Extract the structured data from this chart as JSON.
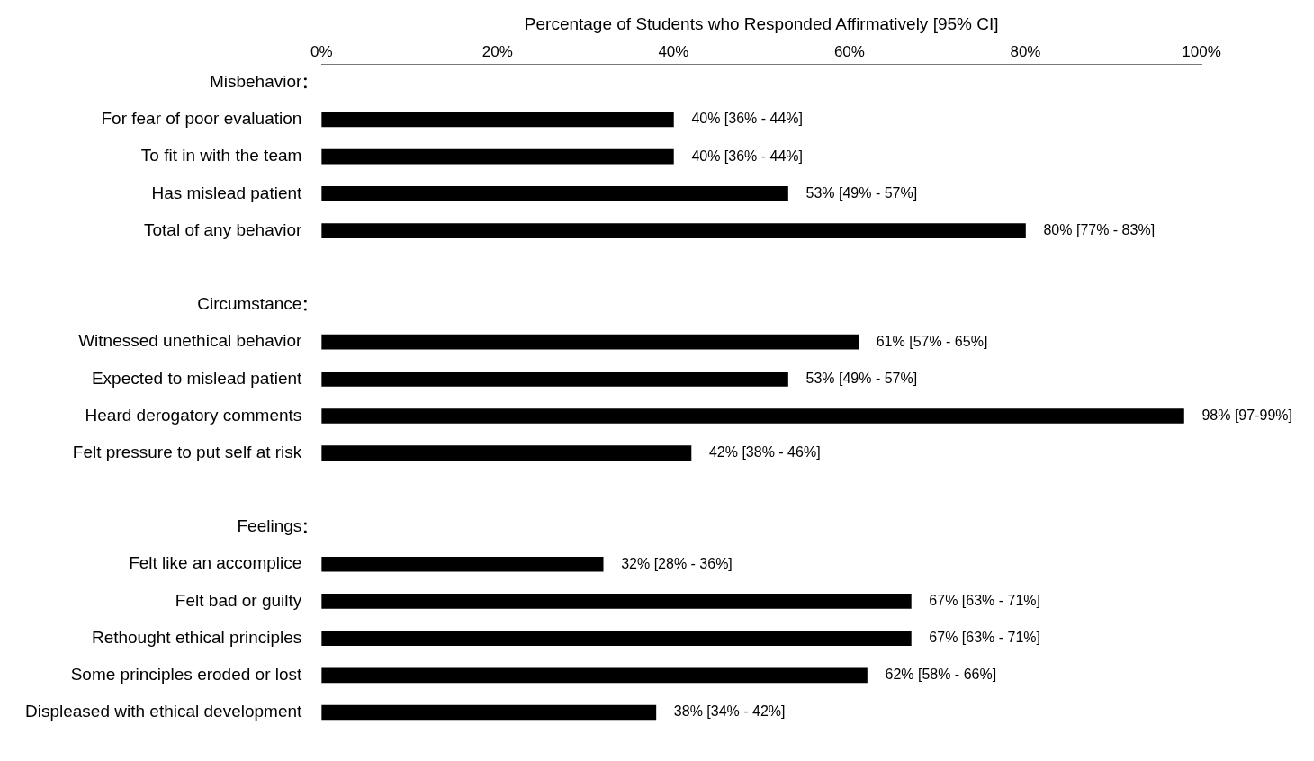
{
  "chart_data": {
    "type": "bar",
    "orientation": "horizontal",
    "xlabel": "Percentage of Students who Responded Affirmatively [95% CI]",
    "categories": [
      "Misbehavior",
      "For fear of poor evaluation",
      "To fit in with the team",
      "Has mislead patient",
      "Total of any behavior",
      null,
      "Circumstance",
      "Witnessed unethical behavior",
      "Expected to mislead patient",
      "Heard derogatory comments",
      "Felt pressure to put self at risk",
      null,
      "Feelings",
      "Felt like an accomplice",
      "Felt bad or guilty",
      "Rethought ethical principles",
      "Some principles eroded or lost",
      "Displeased with ethical development"
    ],
    "values": [
      null,
      40,
      40,
      53,
      80,
      null,
      null,
      61,
      53,
      98,
      42,
      null,
      null,
      32,
      67,
      67,
      62,
      38
    ],
    "value_labels": [
      null,
      "40% [36% - 44%]",
      "40% [36% - 44%]",
      "53% [49% - 57%]",
      "80% [77% - 83%]",
      null,
      null,
      "61% [57% - 65%]",
      "53% [49% - 57%]",
      "98% [97-99%]",
      "42% [38% - 46%]",
      null,
      null,
      "32% [28% - 36%]",
      "67% [63% - 71%]",
      "67% [63% - 71%]",
      "62% [58% - 66%]",
      "38% [34% - 42%]"
    ],
    "color": "#000000",
    "xlim": [
      0,
      100
    ],
    "xticks": [
      {
        "value": 0,
        "label": "0%"
      },
      {
        "value": 20,
        "label": "20%"
      },
      {
        "value": 40,
        "label": "40%"
      },
      {
        "value": 60,
        "label": "60%"
      },
      {
        "value": 80,
        "label": "80%"
      },
      {
        "value": 100,
        "label": "100%"
      }
    ],
    "grid": false,
    "legend": false
  }
}
